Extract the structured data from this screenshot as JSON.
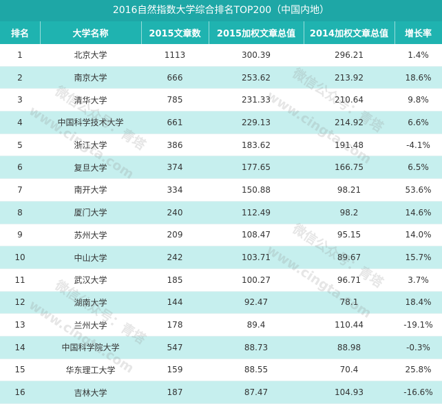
{
  "table": {
    "title": "2016自然指数大学综合排名TOP200（中国内地）",
    "headers": [
      "排名",
      "大学名称",
      "2015文章数",
      "2015加权文章总值",
      "2014加权文章总值",
      "增长率"
    ],
    "rows": [
      [
        "1",
        "北京大学",
        "1113",
        "300.39",
        "296.21",
        "1.4%"
      ],
      [
        "2",
        "南京大学",
        "666",
        "253.62",
        "213.92",
        "18.6%"
      ],
      [
        "3",
        "清华大学",
        "785",
        "231.33",
        "210.64",
        "9.8%"
      ],
      [
        "4",
        "中国科学技术大学",
        "661",
        "229.13",
        "214.92",
        "6.6%"
      ],
      [
        "5",
        "浙江大学",
        "386",
        "183.62",
        "191.48",
        "-4.1%"
      ],
      [
        "6",
        "复旦大学",
        "374",
        "177.65",
        "166.75",
        "6.5%"
      ],
      [
        "7",
        "南开大学",
        "334",
        "150.88",
        "98.21",
        "53.6%"
      ],
      [
        "8",
        "厦门大学",
        "240",
        "112.49",
        "98.2",
        "14.6%"
      ],
      [
        "9",
        "苏州大学",
        "209",
        "108.47",
        "95.15",
        "14.0%"
      ],
      [
        "10",
        "中山大学",
        "242",
        "103.71",
        "89.67",
        "15.7%"
      ],
      [
        "11",
        "武汉大学",
        "185",
        "100.27",
        "96.71",
        "3.7%"
      ],
      [
        "12",
        "湖南大学",
        "144",
        "92.47",
        "78.1",
        "18.4%"
      ],
      [
        "13",
        "兰州大学",
        "178",
        "89.4",
        "110.44",
        "-19.1%"
      ],
      [
        "14",
        "中国科学院大学",
        "547",
        "88.73",
        "88.98",
        "-0.3%"
      ],
      [
        "15",
        "华东理工大学",
        "159",
        "88.55",
        "70.4",
        "25.8%"
      ],
      [
        "16",
        "吉林大学",
        "187",
        "87.47",
        "104.93",
        "-16.6%"
      ]
    ]
  },
  "watermark": {
    "line1": "微信公众号：青塔",
    "line2": "www.cingta.com"
  },
  "colors": {
    "title_bg": "#1ea7a6",
    "header_bg": "#1fb3b0",
    "stripe": "#c6efee"
  }
}
